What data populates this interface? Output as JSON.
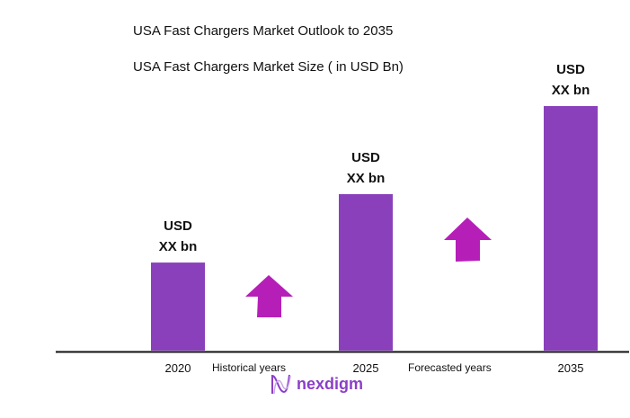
{
  "chart_data": {
    "type": "bar",
    "title": "USA Fast Chargers Market Outlook to 2035",
    "subtitle": "USA Fast Chargers Market Size ( in USD Bn)",
    "categories": [
      "2020",
      "2025",
      "2035"
    ],
    "values": [
      0.36,
      0.64,
      1.0
    ],
    "value_note_relative": true,
    "data_labels": [
      [
        "USD",
        "XX bn"
      ],
      [
        "USD",
        "XX bn"
      ],
      [
        "USD",
        "XX bn"
      ]
    ],
    "period_labels": [
      "Historical years",
      "Forecasted years"
    ],
    "grid": false,
    "bar_color": "#8a40bb",
    "arrow_color": "#b51fb8"
  },
  "logo": {
    "text": "nexdigm"
  }
}
